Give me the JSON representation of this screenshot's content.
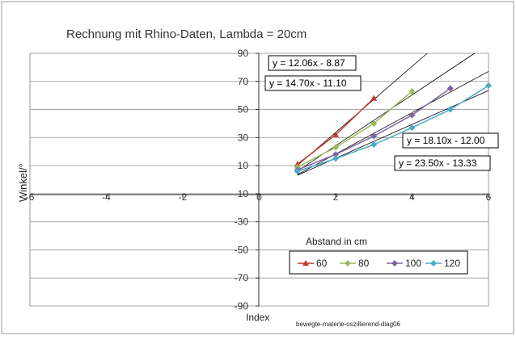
{
  "chart_data": {
    "type": "scatter",
    "title": "Rechnung mit Rhino-Daten, Lambda = 20cm",
    "xlabel": "Index",
    "ylabel": "Winkel/°",
    "xlim": [
      -6,
      6
    ],
    "ylim": [
      -90,
      90
    ],
    "x_ticks": [
      "-6",
      "-4",
      "-2",
      "0",
      "2",
      "4",
      "6"
    ],
    "y_ticks": [
      "-90",
      "-70",
      "-50",
      "-30",
      "-10",
      "10",
      "30",
      "50",
      "70",
      "90"
    ],
    "x_tick_values": [
      -6,
      -4,
      -2,
      0,
      2,
      4,
      6
    ],
    "y_tick_values": [
      -90,
      -70,
      -50,
      -30,
      -10,
      10,
      30,
      50,
      70,
      90
    ],
    "grid": "horizontal",
    "legend_title": "Abstand in cm",
    "legend_position": "bottom-right",
    "series": [
      {
        "name": "60",
        "color": "#c0392b",
        "marker": "triangle",
        "x": [
          1,
          2,
          3
        ],
        "y": [
          11,
          32,
          58
        ]
      },
      {
        "name": "80",
        "color": "#9bbb59",
        "marker": "diamond",
        "x": [
          1,
          2,
          3,
          4
        ],
        "y": [
          9,
          23,
          40,
          63
        ]
      },
      {
        "name": "100",
        "color": "#8064a2",
        "marker": "diamond",
        "x": [
          1,
          2,
          3,
          4,
          5
        ],
        "y": [
          7,
          18,
          31,
          46,
          65
        ]
      },
      {
        "name": "120",
        "color": "#4bacc6",
        "marker": "diamond",
        "x": [
          1,
          2,
          3,
          4,
          5,
          6
        ],
        "y": [
          6,
          15,
          25,
          37,
          50,
          67
        ]
      }
    ],
    "trendlines": [
      {
        "label": "y = 12.06x - 8.87",
        "slope": 12.06,
        "intercept": -8.87
      },
      {
        "label": "y = 14.70x - 11.10",
        "slope": 14.7,
        "intercept": -11.1
      },
      {
        "label": "y = 18.10x - 12.00",
        "slope": 18.1,
        "intercept": -12.0
      },
      {
        "label": "y = 23.50x - 13.33",
        "slope": 23.5,
        "intercept": -13.33
      }
    ],
    "footnote": "bewegte-materie-oszillierend-diag06"
  }
}
